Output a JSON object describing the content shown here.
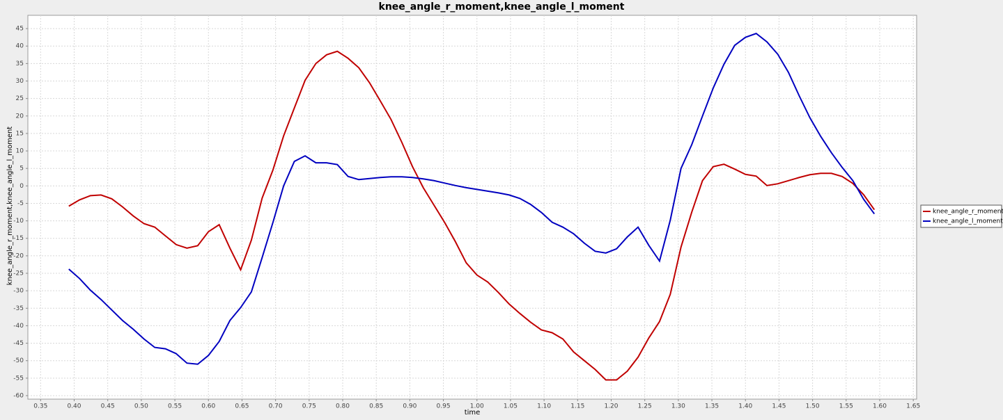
{
  "chart_data": {
    "type": "line",
    "title": "knee_angle_r_moment,knee_angle_l_moment",
    "x_label": "time",
    "y_label": "knee_angle_r_moment,knee_angle_l_moment",
    "x": [
      0.392,
      0.408,
      0.424,
      0.44,
      0.456,
      0.472,
      0.488,
      0.504,
      0.52,
      0.536,
      0.552,
      0.568,
      0.584,
      0.6,
      0.616,
      0.632,
      0.648,
      0.664,
      0.68,
      0.696,
      0.712,
      0.728,
      0.744,
      0.76,
      0.776,
      0.792,
      0.808,
      0.824,
      0.84,
      0.856,
      0.872,
      0.888,
      0.904,
      0.92,
      0.936,
      0.952,
      0.968,
      0.984,
      1.0,
      1.016,
      1.032,
      1.048,
      1.064,
      1.08,
      1.096,
      1.112,
      1.128,
      1.144,
      1.16,
      1.176,
      1.192,
      1.208,
      1.224,
      1.24,
      1.256,
      1.272,
      1.288,
      1.304,
      1.32,
      1.336,
      1.352,
      1.368,
      1.384,
      1.4,
      1.416,
      1.432,
      1.448,
      1.464,
      1.48,
      1.496,
      1.512,
      1.528,
      1.544,
      1.56,
      1.576,
      1.592
    ],
    "series": [
      {
        "name": "knee_angle_r_moment",
        "color": "#c00000",
        "values": [
          -5.8,
          -4,
          -2.8,
          -2.6,
          -3.7,
          -6,
          -8.6,
          -10.8,
          -11.8,
          -14.3,
          -16.8,
          -17.8,
          -17.1,
          -13.1,
          -11.1,
          -17.8,
          -24,
          -15.5,
          -3.5,
          4.5,
          14.3,
          22.3,
          30.2,
          35,
          37.5,
          38.5,
          36.5,
          33.8,
          29.5,
          24.3,
          19,
          12.5,
          5.5,
          -0.5,
          -5.5,
          -10.5,
          -16,
          -22,
          -25.5,
          -27.5,
          -30.5,
          -33.8,
          -36.5,
          -39,
          -41.2,
          -42,
          -43.8,
          -47.5,
          -50,
          -52.5,
          -55.5,
          -55.5,
          -53,
          -49,
          -43.5,
          -38.8,
          -31,
          -17.5,
          -7.5,
          1.5,
          5.5,
          6.2,
          4.8,
          3.3,
          2.8,
          0.1,
          0.6,
          1.5,
          2.4,
          3.2,
          3.6,
          3.6,
          2.7,
          0.7,
          -2.5,
          -6.8
        ]
      },
      {
        "name": "knee_angle_l_moment",
        "color": "#0000c0",
        "values": [
          -23.8,
          -26.5,
          -29.8,
          -32.5,
          -35.5,
          -38.5,
          -41,
          -43.8,
          -46.2,
          -46.6,
          -48,
          -50.7,
          -51,
          -48.5,
          -44.5,
          -38.5,
          -34.8,
          -30.3,
          -20.5,
          -10.5,
          0,
          7,
          8.6,
          6.6,
          6.6,
          6.1,
          2.7,
          1.8,
          2.1,
          2.4,
          2.6,
          2.6,
          2.4,
          2,
          1.5,
          0.8,
          0.1,
          -0.5,
          -1,
          -1.5,
          -2,
          -2.6,
          -3.6,
          -5.3,
          -7.6,
          -10.4,
          -11.8,
          -13.7,
          -16.4,
          -18.7,
          -19.2,
          -18,
          -14.6,
          -11.8,
          -17,
          -21.5,
          -9.8,
          5,
          11.8,
          20,
          28,
          34.8,
          40.2,
          42.5,
          43.6,
          41.2,
          37.7,
          32.5,
          25.8,
          19.5,
          14.2,
          9.5,
          5.3,
          1.5,
          -3.8,
          -8
        ]
      }
    ],
    "xlim": [
      0.331,
      1.655
    ],
    "ylim": [
      -61,
      48.8
    ],
    "xticks": [
      0.35,
      {
        "value": 0.4,
        "label": "0.40"
      },
      0.45,
      {
        "value": 0.5,
        "label": "0.50"
      },
      0.55,
      {
        "value": 0.6,
        "label": "0.60"
      },
      0.65,
      {
        "value": 0.7,
        "label": "0.70"
      },
      0.75,
      {
        "value": 0.8,
        "label": "0.80"
      },
      0.85,
      {
        "value": 0.9,
        "label": "0.90"
      },
      0.95,
      {
        "value": 1,
        "label": "1.00"
      },
      1.05,
      {
        "value": 1.1,
        "label": "1.10"
      },
      1.15,
      {
        "value": 1.2,
        "label": "1.20"
      },
      1.25,
      {
        "value": 1.3,
        "label": "1.30"
      },
      1.35,
      {
        "value": 1.4,
        "label": "1.40"
      },
      1.45,
      {
        "value": 1.5,
        "label": "1.50"
      },
      1.55,
      {
        "value": 1.6,
        "label": "1.60"
      },
      1.65
    ],
    "yticks": [
      -60,
      -55,
      -50,
      -45,
      -40,
      -35,
      -30,
      -25,
      -20,
      -15,
      -10,
      -5,
      0,
      5,
      10,
      15,
      20,
      25,
      30,
      35,
      40,
      45
    ],
    "grid": true,
    "legend": "right"
  }
}
